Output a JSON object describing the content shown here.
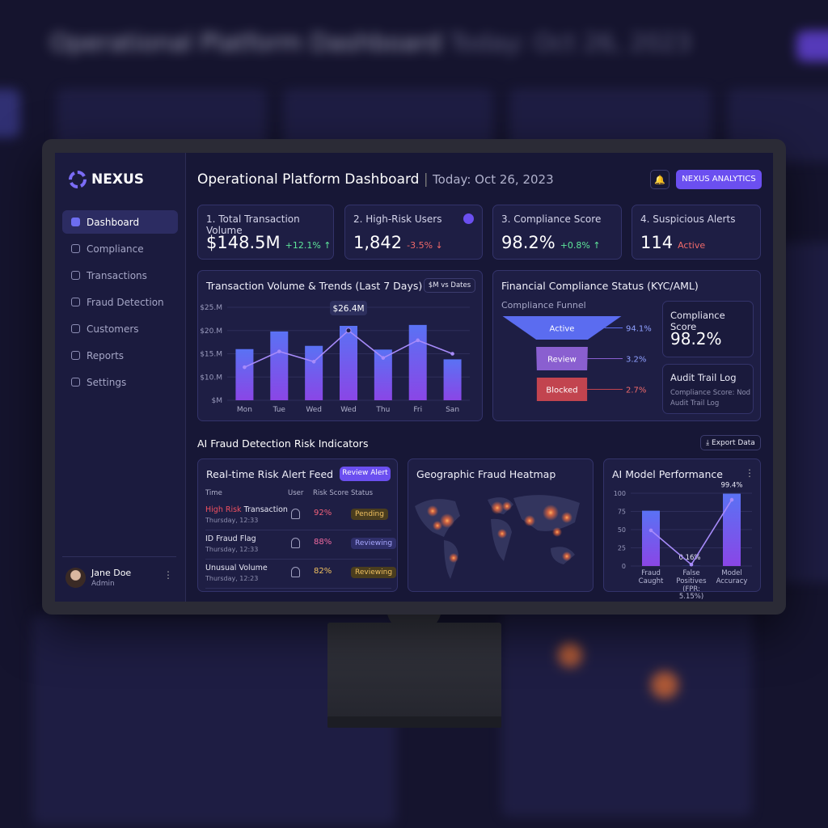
{
  "brand": "NEXUS",
  "nav": [
    "Dashboard",
    "Compliance",
    "Transactions",
    "Fraud Detection",
    "Customers",
    "Reports",
    "Settings"
  ],
  "user": {
    "name": "Jane Doe",
    "role": "Admin"
  },
  "header": {
    "title": "Operational Platform Dashboard",
    "date": "Today: Oct 26, 2023",
    "button": "NEXUS ANALYTICS"
  },
  "kpis": [
    {
      "label": "1. Total Transaction Volume",
      "value": "$148.5M",
      "delta": "+12.1% ↑"
    },
    {
      "label": "2. High-Risk Users",
      "value": "1,842",
      "delta": "-3.5% ↓"
    },
    {
      "label": "3. Compliance Score",
      "value": "98.2%",
      "delta": "+0.8% ↑"
    },
    {
      "label": "4. Suspicious Alerts",
      "value": "114",
      "delta": "Active"
    }
  ],
  "compliance": {
    "title": "Financial Compliance Status (KYC/AML)",
    "score_label": "Compliance Score",
    "score": "98.2%",
    "audit_title": "Audit Trail Log",
    "audit_text": "Compliance Score: Nod Audit Trail Log"
  },
  "fraud": {
    "title": "AI Fraud Detection Risk Indicators",
    "export": "Export Data",
    "feed": {
      "title": "Real-time Risk Alert Feed",
      "button": "Review Alert",
      "columns": [
        "Time",
        "User",
        "Risk Score",
        "Status"
      ],
      "rows": [
        {
          "flag": "High Risk",
          "title": "Transaction",
          "time": "Thursday, 12:33",
          "score": "92%",
          "status": "Pending"
        },
        {
          "title": "ID Fraud Flag",
          "time": "Thursday, 12:33",
          "score": "88%",
          "status": "Reviewing"
        },
        {
          "title": "Unusual Volume",
          "time": "Thursday, 12:23",
          "score": "82%",
          "status": "Reviewing"
        }
      ]
    },
    "heatmap": {
      "title": "Geographic Fraud Heatmap"
    }
  },
  "chart_data": [
    {
      "type": "bar",
      "title": "Transaction Volume & Trends (Last 7 Days)",
      "filter": "$M vs Dates",
      "annotation": "$26.4M",
      "categories": [
        "Mon",
        "Tue",
        "Wed",
        "Wed",
        "Thu",
        "Fri",
        "San"
      ],
      "series": [
        {
          "type": "bar",
          "color": "#5a72f4",
          "values": [
            16.0,
            19.8,
            16.7,
            21.0,
            15.9,
            21.2,
            13.8
          ]
        },
        {
          "type": "line",
          "color": "#a78bfa",
          "values": [
            12.1,
            15.5,
            13.3,
            20.0,
            14.1,
            17.9,
            15.0
          ]
        }
      ],
      "ylim": [
        5,
        25
      ],
      "yticks": [
        {
          "value": 5,
          "label": "$M"
        },
        {
          "value": 10,
          "label": "$10.M"
        },
        {
          "value": 15,
          "label": "$15.M"
        },
        {
          "value": 20,
          "label": "$20.M"
        },
        {
          "value": 25,
          "label": "$25.M"
        }
      ],
      "grid": true
    },
    {
      "type": "funnel",
      "title": "Compliance Funnel",
      "categories": [
        "Active",
        "Review",
        "Blocked"
      ],
      "values": [
        94.1,
        3.2,
        2.7
      ],
      "value_labels": [
        "94.1%",
        "3.2%",
        "2.7%"
      ],
      "colors": [
        "#5b6cf0",
        "#8a5fd0",
        "#c2444f"
      ]
    },
    {
      "type": "bar",
      "title": "AI Model Performance",
      "categories": [
        "Fraud Caught",
        "False Positives (FPR: 5.15%)",
        "Model Accuracy"
      ],
      "series": [
        {
          "type": "bar",
          "color": "#5a72f4",
          "values": [
            76,
            0.16,
            99.4
          ],
          "value_labels": [
            null,
            "0.16%",
            "99.4%"
          ]
        },
        {
          "type": "line",
          "color": "#a78bfa",
          "values": [
            49,
            2,
            91
          ]
        }
      ],
      "ylim": [
        0,
        100
      ],
      "yticks": [
        0,
        25,
        50,
        75,
        100
      ],
      "grid": true
    }
  ]
}
